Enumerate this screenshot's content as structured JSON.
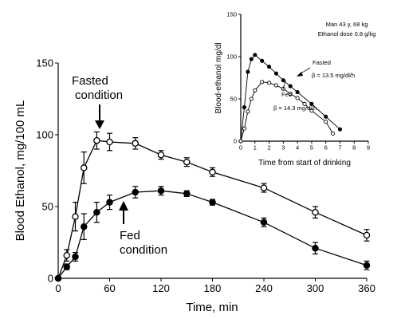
{
  "chart_data": [
    {
      "type": "line",
      "xlabel": "Time, min",
      "ylabel": "Blood Ethanol, mg/100 mL",
      "xlim": [
        0,
        360
      ],
      "ylim": [
        0,
        150
      ],
      "xticks": [
        0,
        60,
        120,
        180,
        240,
        300,
        360
      ],
      "yticks": [
        0,
        50,
        100,
        150
      ],
      "grid": false,
      "series": [
        {
          "name": "Fasted condition",
          "marker": "open-circle",
          "x": [
            0,
            10,
            20,
            30,
            45,
            60,
            90,
            120,
            150,
            180,
            240,
            300,
            360
          ],
          "y": [
            0,
            16,
            43,
            77,
            96,
            95,
            94,
            86,
            81,
            74,
            63,
            46,
            30
          ],
          "err": [
            0,
            4,
            10,
            11,
            6,
            6,
            4,
            3,
            3,
            3,
            3,
            4,
            4
          ]
        },
        {
          "name": "Fed condition",
          "marker": "filled-circle",
          "x": [
            0,
            10,
            20,
            30,
            45,
            60,
            90,
            120,
            150,
            180,
            240,
            300,
            360
          ],
          "y": [
            0,
            8,
            15,
            36,
            46,
            53,
            60,
            61,
            59,
            53,
            39,
            21,
            9
          ],
          "err": [
            0,
            2,
            3,
            9,
            7,
            5,
            4,
            3,
            2,
            2,
            3,
            4,
            3
          ]
        }
      ],
      "annotations": [
        {
          "lines": [
            "Fasted",
            "condition"
          ],
          "series": 0
        },
        {
          "lines": [
            "Fed",
            "condition"
          ],
          "series": 1
        }
      ]
    },
    {
      "type": "line",
      "xlabel": "Time from start of drinking",
      "ylabel": "Blood-ethanol mg/dl",
      "xlim": [
        0,
        9
      ],
      "ylim": [
        0,
        150
      ],
      "xticks": [
        0,
        1,
        2,
        3,
        4,
        5,
        6,
        7,
        8,
        9
      ],
      "yticks": [
        0,
        50,
        100,
        150
      ],
      "grid": false,
      "info": [
        "Man 43 y, 68 kg",
        "Ethanol dose 0.8 g/kg"
      ],
      "series": [
        {
          "name": "Fasted",
          "marker": "filled-circle",
          "beta": "β = 13.5 mg/dl/h",
          "x": [
            0,
            0.25,
            0.5,
            0.75,
            1.0,
            1.5,
            2.0,
            2.5,
            3.0,
            3.5,
            4.0,
            5.0,
            6.0,
            7.0
          ],
          "y": [
            0,
            40,
            82,
            97,
            102,
            95,
            88,
            80,
            72,
            65,
            58,
            44,
            29,
            14
          ]
        },
        {
          "name": "Fed",
          "marker": "open-circle",
          "beta": "β = 14.3 mg/dl/h",
          "x": [
            0,
            0.25,
            0.5,
            0.75,
            1.0,
            1.5,
            2.0,
            2.5,
            3.0,
            3.5,
            4.0,
            4.5,
            5.0,
            6.0,
            6.5
          ],
          "y": [
            0,
            15,
            35,
            50,
            60,
            70,
            69,
            66,
            62,
            56,
            51,
            44,
            36,
            23,
            9
          ]
        }
      ]
    }
  ]
}
